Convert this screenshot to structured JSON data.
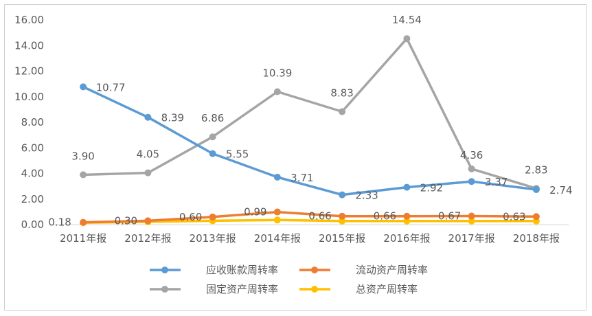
{
  "chart_data": {
    "type": "line",
    "title": "",
    "xlabel": "",
    "ylabel": "",
    "categories": [
      "2011年报",
      "2012年报",
      "2013年报",
      "2014年报",
      "2015年报",
      "2016年报",
      "2017年报",
      "2018年报"
    ],
    "ylim": [
      0,
      16
    ],
    "yticks": [
      "0.00",
      "2.00",
      "4.00",
      "6.00",
      "8.00",
      "10.00",
      "12.00",
      "14.00",
      "16.00"
    ],
    "grid": false,
    "legend_position": "bottom",
    "series": [
      {
        "name": "应收账款周转率",
        "color": "#5b9bd5",
        "values": [
          10.77,
          8.39,
          5.55,
          3.71,
          2.33,
          2.92,
          3.37,
          2.74
        ],
        "labels": [
          "10.77",
          "8.39",
          "5.55",
          "3.71",
          "2.33",
          "2.92",
          "3.37",
          "2.74"
        ]
      },
      {
        "name": "流动资产周转率",
        "color": "#ed7d31",
        "values": [
          0.18,
          0.3,
          0.6,
          0.99,
          0.66,
          0.66,
          0.67,
          0.63
        ],
        "labels": [
          "0.18",
          "0.30",
          "0.60",
          "0.99",
          "0.66",
          "0.66",
          "0.67",
          "0.63"
        ]
      },
      {
        "name": "固定资产周转率",
        "color": "#a5a5a5",
        "values": [
          3.9,
          4.05,
          6.86,
          10.39,
          8.83,
          14.54,
          4.36,
          2.83
        ],
        "labels": [
          "3.90",
          "4.05",
          "6.86",
          "10.39",
          "8.83",
          "14.54",
          "4.36",
          "2.83"
        ]
      },
      {
        "name": "总资产周转率",
        "color": "#ffc000",
        "values": [
          0.15,
          0.22,
          0.3,
          0.36,
          0.28,
          0.28,
          0.28,
          0.28
        ],
        "labels": []
      }
    ]
  }
}
